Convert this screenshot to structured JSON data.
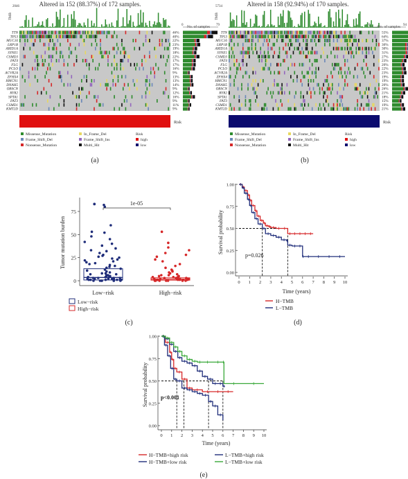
{
  "colors": {
    "missense": "#2e8b2e",
    "frame_del": "#6a88b8",
    "nonsense": "#d62728",
    "in_frame_del": "#e8d860",
    "frame_ins": "#9467bd",
    "multi_hit": "#111111",
    "wild": "#c8c8c8",
    "risk_high": "#e01010",
    "risk_low": "#0b0b6e",
    "km_h": "#d62728",
    "km_l": "#1f2d7a",
    "ht_high": "#d62728",
    "ht_low": "#1f2d7a",
    "lt_high": "#1f2d7a",
    "lt_low": "#39a839",
    "box_low": "#1f2d7a",
    "box_high": "#d62728"
  },
  "panel_a": {
    "title": "Altered in 152 (88.37%) of 172 samples.",
    "tmb_max": "2046",
    "tmb_label": "TMB",
    "no_samples_label": "No. of samples",
    "axis_min": "0",
    "axis_max": "79",
    "risk_label": "Risk",
    "caption": "(a)",
    "genes": [
      "TTN",
      "TP53",
      "MUC16",
      "LRP1B",
      "ARID1A",
      "SYNE1",
      "CSMD3",
      "FAT4",
      "FLG",
      "PCLO",
      "ACVR2A",
      "ZFHX4",
      "HMCN1",
      "DNAH5",
      "OBSCN",
      "RYR2",
      "SPTA1",
      "FAT3",
      "CSMD1",
      "KMT2D"
    ],
    "pcts": [
      "46%",
      "40%",
      "22%",
      "23%",
      "19%",
      "18%",
      "22%",
      "17%",
      "17%",
      "16%",
      "9%",
      "13%",
      "13%",
      "14%",
      "9%",
      "12%",
      "16%",
      "9%",
      "11%",
      "9%"
    ],
    "legend": [
      "Missense_Mutation",
      "In_Frame_Del",
      "Risk",
      "Frame_Shift_Del",
      "Frame_Shift_Ins",
      "high",
      "Nonsense_Mutation",
      "Multi_Hit",
      "low"
    ]
  },
  "panel_b": {
    "title": "Altered in 158 (92.94%) of 170 samples.",
    "tmb_max": "5734",
    "tmb_label": "TMB",
    "no_samples_label": "No. of samples",
    "axis_min": "0",
    "axis_max": "94",
    "risk_label": "Risk",
    "caption": "(b)",
    "genes": [
      "TTN",
      "TP53",
      "MUC16",
      "LRP1B",
      "ARID1A",
      "SYNE1",
      "CSMD3",
      "FAT4",
      "FLG",
      "PCLO",
      "ACVR2A",
      "ZFHX4",
      "HMCN1",
      "DNAH5",
      "OBSCN",
      "RYR2",
      "SPTA1",
      "FAT3",
      "CSMD1",
      "KMT2D"
    ],
    "pcts": [
      "55%",
      "64%",
      "37%",
      "30%",
      "30%",
      "31%",
      "27%",
      "23%",
      "20%",
      "22%",
      "23%",
      "19%",
      "19%",
      "20%",
      "26%",
      "21%",
      "18%",
      "15%",
      "19%",
      "21%"
    ],
    "legend": [
      "Missense_Mutation",
      "In_Frame_Del",
      "Risk",
      "Frame_Shift_Del",
      "Frame_Shift_Ins",
      "high",
      "Nonsense_Mutation",
      "Multi_Hit",
      "low"
    ]
  },
  "panel_c": {
    "pvalue": "1e-05",
    "ylabel": "Tumor mutation burden",
    "yticks": [
      "0",
      "25",
      "50",
      "75"
    ],
    "categories": [
      "Low−risk",
      "High−risk"
    ],
    "legend": [
      "Low−risk",
      "High−risk"
    ],
    "caption": "(c)"
  },
  "panel_d": {
    "ylabel": "Survival probability",
    "xlabel": "Time (years)",
    "yticks": [
      "0.00",
      "0.25",
      "0.50",
      "0.75",
      "1.00"
    ],
    "xticks": [
      "0",
      "1",
      "2",
      "3",
      "4",
      "5",
      "6",
      "7",
      "8",
      "9",
      "10"
    ],
    "pvalue": "p=0.026",
    "legend": [
      "H−TMB",
      "L−TMB"
    ],
    "caption": "(d)"
  },
  "panel_e": {
    "ylabel": "Survival probability",
    "xlabel": "Time (years)",
    "yticks": [
      "0.00",
      "0.25",
      "0.50",
      "0.75",
      "1.00"
    ],
    "xticks": [
      "0",
      "1",
      "2",
      "3",
      "4",
      "5",
      "6",
      "7",
      "8",
      "9",
      "10"
    ],
    "pvalue": "p<0.001",
    "legend": [
      "H−TMB+high risk",
      "L−TMB+high risk",
      "H−TMB+low risk",
      "L−TMB+low risk"
    ],
    "caption": "(e)"
  },
  "chart_data": [
    {
      "type": "heatmap",
      "genes": [
        "TTN",
        "TP53",
        "MUC16",
        "LRP1B",
        "ARID1A",
        "SYNE1",
        "CSMD3",
        "FAT4",
        "FLG",
        "PCLO",
        "ACVR2A",
        "ZFHX4",
        "HMCN1",
        "DNAH5",
        "OBSCN",
        "RYR2",
        "SPTA1",
        "FAT3",
        "CSMD1",
        "KMT2D"
      ],
      "altered_percent": [
        46,
        40,
        22,
        23,
        19,
        18,
        22,
        17,
        17,
        16,
        9,
        13,
        13,
        14,
        9,
        12,
        16,
        9,
        11,
        9
      ],
      "altered_samples": 152,
      "total_samples": 172,
      "risk": "high",
      "samples_axis": [
        0,
        79
      ]
    },
    {
      "type": "heatmap",
      "genes": [
        "TTN",
        "TP53",
        "MUC16",
        "LRP1B",
        "ARID1A",
        "SYNE1",
        "CSMD3",
        "FAT4",
        "FLG",
        "PCLO",
        "ACVR2A",
        "ZFHX4",
        "HMCN1",
        "DNAH5",
        "OBSCN",
        "RYR2",
        "SPTA1",
        "FAT3",
        "CSMD1",
        "KMT2D"
      ],
      "altered_percent": [
        55,
        64,
        37,
        30,
        30,
        31,
        27,
        23,
        20,
        22,
        23,
        19,
        19,
        20,
        26,
        21,
        18,
        15,
        19,
        21
      ],
      "altered_samples": 158,
      "total_samples": 170,
      "risk": "low",
      "samples_axis": [
        0,
        94
      ]
    },
    {
      "type": "scatter",
      "categories": [
        "Low−risk",
        "High−risk"
      ],
      "ylabel": "Tumor mutation burden",
      "ylim": [
        0,
        90
      ],
      "pvalue": "1e-05",
      "series": [
        {
          "name": "Low−risk",
          "median": 3.5,
          "q1": 0.8,
          "q3": 13,
          "points": [
            83,
            83,
            80,
            82,
            60,
            53,
            52,
            48,
            45,
            42,
            40,
            38,
            35,
            33,
            32,
            30,
            28,
            27,
            26,
            25,
            24,
            23,
            22,
            21,
            20,
            19,
            18,
            17,
            16,
            15,
            14,
            13,
            12,
            11,
            10,
            9,
            8,
            8,
            7,
            7,
            6,
            6,
            5,
            5,
            5,
            4,
            4,
            4,
            3,
            3,
            3,
            3,
            2,
            2,
            2,
            2,
            2,
            1,
            1,
            1,
            1,
            1,
            1,
            0,
            0,
            0,
            0,
            0,
            0,
            0
          ]
        },
        {
          "name": "High−risk",
          "median": 1.8,
          "q1": 0.6,
          "q3": 3.2,
          "points": [
            53,
            41,
            36,
            33,
            30,
            28,
            26,
            23,
            21,
            18,
            16,
            14,
            12,
            11,
            10,
            9,
            8,
            7,
            6,
            6,
            5,
            5,
            5,
            4,
            4,
            4,
            3,
            3,
            3,
            3,
            2,
            2,
            2,
            2,
            2,
            2,
            1,
            1,
            1,
            1,
            1,
            1,
            1,
            0,
            0,
            0,
            0,
            0,
            0,
            0
          ]
        }
      ]
    },
    {
      "type": "line",
      "xlabel": "Time (years)",
      "ylabel": "Survival probability",
      "xlim": [
        0,
        10
      ],
      "ylim": [
        0,
        1
      ],
      "pvalue": "p=0.026",
      "series": [
        {
          "name": "H−TMB",
          "x": [
            0,
            0.3,
            0.5,
            0.8,
            1.0,
            1.2,
            1.5,
            1.7,
            2.0,
            2.3,
            2.5,
            2.8,
            3.0,
            3.5,
            4.0,
            4.6,
            5.0,
            5.5,
            6.0,
            6.5,
            7.0
          ],
          "y": [
            1,
            0.97,
            0.93,
            0.88,
            0.82,
            0.76,
            0.7,
            0.64,
            0.59,
            0.56,
            0.53,
            0.52,
            0.51,
            0.5,
            0.5,
            0.44,
            0.44,
            0.44,
            0.44,
            0.44,
            0.44
          ]
        },
        {
          "name": "L−TMB",
          "x": [
            0,
            0.3,
            0.5,
            0.8,
            1.0,
            1.2,
            1.5,
            1.8,
            2.2,
            2.5,
            3.0,
            3.5,
            4.0,
            4.5,
            4.6,
            5.0,
            5.5,
            6.0,
            6.1,
            7.0,
            8.0,
            9.0,
            10.0
          ],
          "y": [
            1,
            0.96,
            0.9,
            0.83,
            0.76,
            0.68,
            0.61,
            0.55,
            0.5,
            0.44,
            0.42,
            0.4,
            0.37,
            0.36,
            0.31,
            0.3,
            0.3,
            0.18,
            0.18,
            0.18,
            0.18,
            0.18,
            0.18
          ]
        }
      ],
      "median_survival": [
        2.2,
        4.6
      ]
    },
    {
      "type": "line",
      "xlabel": "Time (years)",
      "ylabel": "Survival probability",
      "xlim": [
        0,
        10
      ],
      "ylim": [
        0,
        1
      ],
      "pvalue": "p<0.001",
      "series": [
        {
          "name": "H−TMB+high risk",
          "x": [
            0,
            0.4,
            0.8,
            1.0,
            1.2,
            1.5,
            2.0,
            2.5,
            3.0,
            4.0,
            5.0,
            6.0,
            7.0
          ],
          "y": [
            1,
            0.93,
            0.82,
            0.74,
            0.64,
            0.6,
            0.52,
            0.42,
            0.4,
            0.38,
            0.38,
            0.38,
            0.38
          ]
        },
        {
          "name": "L−TMB+high risk",
          "x": [
            0,
            0.3,
            0.6,
            0.9,
            1.2,
            1.5,
            2.0,
            2.5,
            3.0,
            3.5,
            4.0,
            4.6,
            5.0,
            5.5,
            6.0
          ],
          "y": [
            1,
            0.9,
            0.78,
            0.64,
            0.52,
            0.5,
            0.42,
            0.4,
            0.38,
            0.36,
            0.34,
            0.27,
            0.22,
            0.12,
            0.06
          ]
        },
        {
          "name": "H−TMB+low risk",
          "x": [
            0,
            0.4,
            0.8,
            1.2,
            1.6,
            2.0,
            2.5,
            3.0,
            3.5,
            4.0,
            4.5,
            5.0,
            5.5,
            6.0,
            6.2
          ],
          "y": [
            1,
            0.97,
            0.91,
            0.83,
            0.76,
            0.72,
            0.7,
            0.67,
            0.61,
            0.55,
            0.52,
            0.47,
            0.47,
            0.44,
            0.44
          ]
        },
        {
          "name": "L−TMB+low risk",
          "x": [
            0,
            0.4,
            0.8,
            1.2,
            1.6,
            2.0,
            2.5,
            3.0,
            3.5,
            4.0,
            5.0,
            6.0,
            6.1,
            8.0,
            10.0
          ],
          "y": [
            1,
            0.98,
            0.93,
            0.88,
            0.83,
            0.78,
            0.74,
            0.72,
            0.71,
            0.71,
            0.71,
            0.71,
            0.47,
            0.47,
            0.47
          ]
        }
      ],
      "median_survival": [
        1.5,
        2.2,
        4.6,
        6.0
      ]
    }
  ]
}
